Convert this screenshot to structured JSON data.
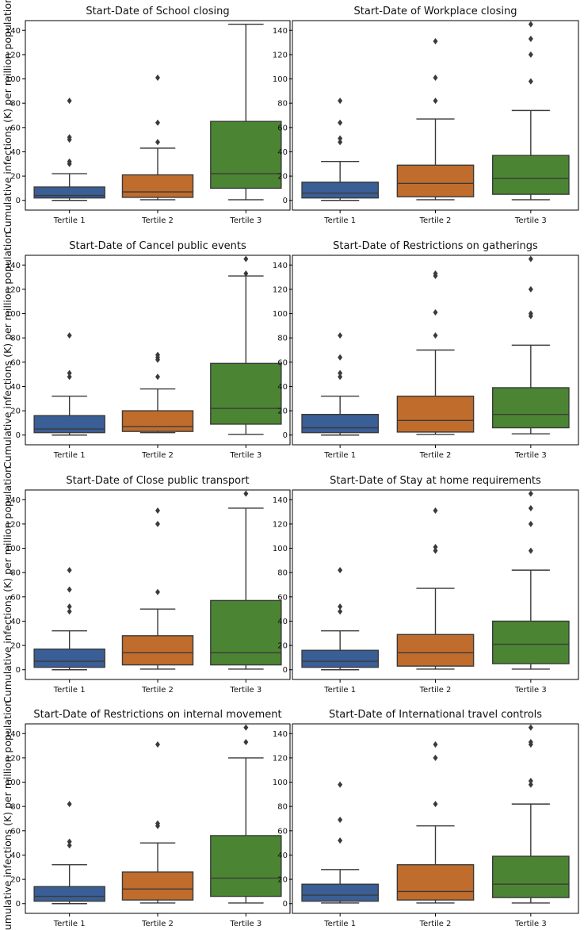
{
  "ylabel": "Cumulative infections (K) per million population",
  "colors": {
    "tertile_1": "#3a5e96",
    "tertile_2": "#c06c2c",
    "tertile_3": "#4b8533",
    "line": "#3a3a3a"
  },
  "chart_data": [
    {
      "type": "box",
      "title": "Start-Date of School closing",
      "categories": [
        "Tertile 1",
        "Tertile 2",
        "Tertile 3"
      ],
      "ylim": [
        -8,
        148
      ],
      "yticks": [
        0,
        20,
        40,
        60,
        80,
        100,
        120,
        140
      ],
      "boxes": [
        {
          "whislo": 0,
          "q1": 2,
          "med": 4,
          "q3": 11,
          "whishi": 22,
          "fliers": [
            30,
            32,
            50,
            52,
            82
          ]
        },
        {
          "whislo": 0.5,
          "q1": 2.5,
          "med": 7,
          "q3": 21,
          "whishi": 43,
          "fliers": [
            48,
            64,
            101
          ]
        },
        {
          "whislo": 0.5,
          "q1": 10,
          "med": 22,
          "q3": 65,
          "whishi": 145,
          "fliers": []
        }
      ]
    },
    {
      "type": "box",
      "title": "Start-Date of Workplace closing",
      "categories": [
        "Tertile 1",
        "Tertile 2",
        "Tertile 3"
      ],
      "ylim": [
        -8,
        148
      ],
      "yticks": [
        0,
        20,
        40,
        60,
        80,
        100,
        120,
        140
      ],
      "boxes": [
        {
          "whislo": 0,
          "q1": 2,
          "med": 6,
          "q3": 15,
          "whishi": 32,
          "fliers": [
            48,
            51,
            64,
            82
          ]
        },
        {
          "whislo": 0.5,
          "q1": 3,
          "med": 14,
          "q3": 29,
          "whishi": 67,
          "fliers": [
            82,
            101,
            131
          ]
        },
        {
          "whislo": 0.5,
          "q1": 5,
          "med": 18,
          "q3": 37,
          "whishi": 74,
          "fliers": [
            98,
            120,
            133,
            145
          ]
        }
      ]
    },
    {
      "type": "box",
      "title": "Start-Date of Cancel public events",
      "categories": [
        "Tertile 1",
        "Tertile 2",
        "Tertile 3"
      ],
      "ylim": [
        -8,
        148
      ],
      "yticks": [
        0,
        20,
        40,
        60,
        80,
        100,
        120,
        140
      ],
      "boxes": [
        {
          "whislo": 0,
          "q1": 2,
          "med": 5,
          "q3": 16,
          "whishi": 32,
          "fliers": [
            48,
            51,
            82
          ]
        },
        {
          "whislo": 2,
          "q1": 3,
          "med": 7,
          "q3": 20,
          "whishi": 38,
          "fliers": [
            48,
            62,
            64,
            66
          ]
        },
        {
          "whislo": 0.5,
          "q1": 9,
          "med": 22,
          "q3": 59,
          "whishi": 131,
          "fliers": [
            133,
            145
          ]
        }
      ]
    },
    {
      "type": "box",
      "title": "Start-Date of Restrictions on gatherings",
      "categories": [
        "Tertile 1",
        "Tertile 2",
        "Tertile 3"
      ],
      "ylim": [
        -8,
        148
      ],
      "yticks": [
        0,
        20,
        40,
        60,
        80,
        100,
        120,
        140
      ],
      "boxes": [
        {
          "whislo": 0,
          "q1": 2,
          "med": 6,
          "q3": 17,
          "whishi": 32,
          "fliers": [
            48,
            51,
            64,
            82
          ]
        },
        {
          "whislo": 0.5,
          "q1": 2.5,
          "med": 12,
          "q3": 32,
          "whishi": 70,
          "fliers": [
            82,
            101,
            131,
            133
          ]
        },
        {
          "whislo": 1,
          "q1": 6,
          "med": 17,
          "q3": 39,
          "whishi": 74,
          "fliers": [
            98,
            100,
            120,
            145
          ]
        }
      ]
    },
    {
      "type": "box",
      "title": "Start-Date of Close public transport",
      "categories": [
        "Tertile 1",
        "Tertile 2",
        "Tertile 3"
      ],
      "ylim": [
        -8,
        148
      ],
      "yticks": [
        0,
        20,
        40,
        60,
        80,
        100,
        120,
        140
      ],
      "boxes": [
        {
          "whislo": 0,
          "q1": 2,
          "med": 7,
          "q3": 17,
          "whishi": 32,
          "fliers": [
            48,
            52,
            66,
            82
          ]
        },
        {
          "whislo": 0.5,
          "q1": 4,
          "med": 14,
          "q3": 28,
          "whishi": 50,
          "fliers": [
            64,
            120,
            131
          ]
        },
        {
          "whislo": 0.5,
          "q1": 4,
          "med": 14,
          "q3": 57,
          "whishi": 133,
          "fliers": [
            145
          ]
        }
      ]
    },
    {
      "type": "box",
      "title": "Start-Date of Stay at home requirements",
      "categories": [
        "Tertile 1",
        "Tertile 2",
        "Tertile 3"
      ],
      "ylim": [
        -8,
        148
      ],
      "yticks": [
        0,
        20,
        40,
        60,
        80,
        100,
        120,
        140
      ],
      "boxes": [
        {
          "whislo": 0,
          "q1": 2,
          "med": 7,
          "q3": 16,
          "whishi": 32,
          "fliers": [
            48,
            52,
            82
          ]
        },
        {
          "whislo": 0.5,
          "q1": 3,
          "med": 14,
          "q3": 29,
          "whishi": 67,
          "fliers": [
            98,
            101,
            131
          ]
        },
        {
          "whislo": 0.5,
          "q1": 5,
          "med": 21,
          "q3": 40,
          "whishi": 82,
          "fliers": [
            98,
            120,
            133,
            145
          ]
        }
      ]
    },
    {
      "type": "box",
      "title": "Start-Date of Restrictions on internal movement",
      "categories": [
        "Tertile 1",
        "Tertile 2",
        "Tertile 3"
      ],
      "ylim": [
        -8,
        148
      ],
      "yticks": [
        0,
        20,
        40,
        60,
        80,
        100,
        120,
        140
      ],
      "boxes": [
        {
          "whislo": 0,
          "q1": 2,
          "med": 6,
          "q3": 14,
          "whishi": 32,
          "fliers": [
            48,
            51,
            82
          ]
        },
        {
          "whislo": 0.5,
          "q1": 3,
          "med": 12,
          "q3": 26,
          "whishi": 50,
          "fliers": [
            64,
            66,
            131
          ]
        },
        {
          "whislo": 0.5,
          "q1": 6,
          "med": 21,
          "q3": 56,
          "whishi": 120,
          "fliers": [
            133,
            145
          ]
        }
      ]
    },
    {
      "type": "box",
      "title": "Start-Date of International travel controls",
      "categories": [
        "Tertile 1",
        "Tertile 2",
        "Tertile 3"
      ],
      "ylim": [
        -8,
        148
      ],
      "yticks": [
        0,
        20,
        40,
        60,
        80,
        100,
        120,
        140
      ],
      "boxes": [
        {
          "whislo": 0.5,
          "q1": 2,
          "med": 7,
          "q3": 16,
          "whishi": 28,
          "fliers": [
            52,
            69,
            98
          ]
        },
        {
          "whislo": 0.5,
          "q1": 3,
          "med": 10,
          "q3": 32,
          "whishi": 64,
          "fliers": [
            82,
            120,
            131
          ]
        },
        {
          "whislo": 0.5,
          "q1": 5,
          "med": 16,
          "q3": 39,
          "whishi": 82,
          "fliers": [
            98,
            101,
            131,
            133,
            145
          ]
        }
      ]
    }
  ]
}
